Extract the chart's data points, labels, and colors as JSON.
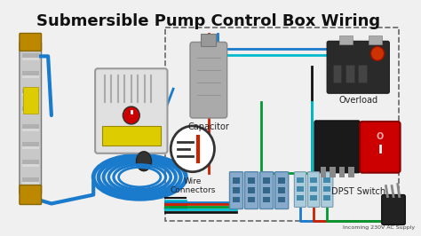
{
  "title": "Submersible Pump Control Box Wiring",
  "title_fontsize": 13,
  "title_color": "#111111",
  "bg_color": "#f0f0f0",
  "labels": {
    "capacitor": "Capacitor",
    "wire_connectors": "Wire\nConnectors",
    "overload": "Overload",
    "dpst": "DPST Switch",
    "incoming": "Incoming 230V AC Supply"
  },
  "wire_colors": {
    "red": "#cc2200",
    "blue": "#1a7acc",
    "green": "#009933",
    "cyan": "#00bbcc",
    "black": "#111111",
    "dark_blue": "#003399"
  }
}
